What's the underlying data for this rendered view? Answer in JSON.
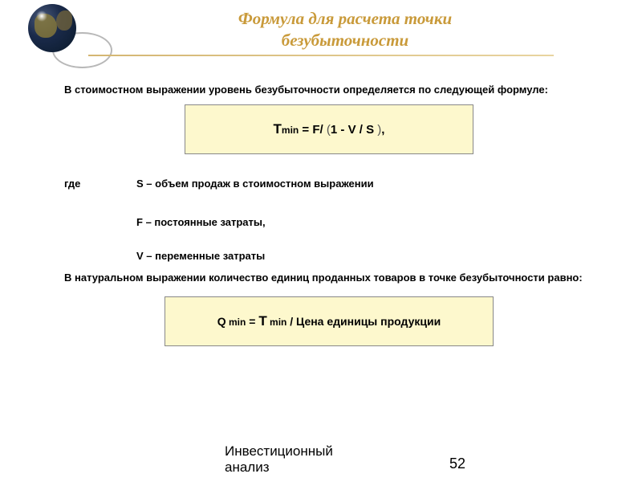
{
  "header": {
    "title_line1": "Формула для расчета точки",
    "title_line2": "безубыточности",
    "title_color": "#c99a3a",
    "border_color": "#d4b672"
  },
  "content": {
    "intro": "В стоимостном выражении уровень безубыточности определяется по следующей формуле:",
    "formula1": {
      "lhs_var": "Т",
      "lhs_sub": "min",
      "eq": " = ",
      "rhs_1": "F",
      "rhs_2": "/ ",
      "rhs_paren_open": "(",
      "rhs_3": "1 - ",
      "rhs_4": "V",
      "rhs_5": " / ",
      "rhs_6": "S ",
      "rhs_paren_close": ")",
      "tail": ","
    },
    "where_label": "где",
    "vars": {
      "s": {
        "sym": "S",
        "text": " – объем продаж в стоимостном выражении"
      },
      "f": {
        "sym": "F",
        "text": " – постоянные затраты,"
      },
      "v": {
        "sym": "V",
        "text": " – переменные затраты"
      }
    },
    "intro2": "В натуральном выражении количество единиц проданных товаров в точке безубыточности равно:",
    "formula2": {
      "lhs_var": "Q",
      "lhs_sub": " min",
      "eq": " = ",
      "rhs_var": "Т",
      "rhs_sub": " min",
      "rhs_tail": " / Цена единицы продукции"
    }
  },
  "footer": {
    "watermark_line1": "Инвестиционный",
    "watermark_line2": "анализ",
    "page": "52"
  },
  "style": {
    "formula_bg": "#fdf8cd",
    "formula_border": "#888888",
    "body_font_size": 13,
    "title_font_size": 21
  }
}
